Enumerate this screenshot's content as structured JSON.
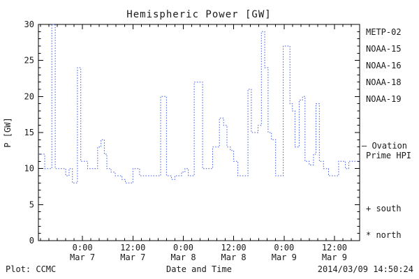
{
  "chart_data": {
    "type": "line",
    "title": "Hemispheric Power [GW]",
    "xlabel": "Date and Time",
    "ylabel": "P [GW]",
    "ylim": [
      0,
      30
    ],
    "y_major_ticks": [
      0,
      5,
      10,
      15,
      20,
      25,
      30
    ],
    "x_range_hours": [
      -10.5,
      66
    ],
    "x_ticks": [
      {
        "hour": 0,
        "time": "0:00",
        "date": "Mar 7"
      },
      {
        "hour": 12,
        "time": "12:00",
        "date": "Mar 7"
      },
      {
        "hour": 24,
        "time": "0:00",
        "date": "Mar 8"
      },
      {
        "hour": 36,
        "time": "12:00",
        "date": "Mar 8"
      },
      {
        "hour": 48,
        "time": "0:00",
        "date": "Mar 9"
      },
      {
        "hour": 60,
        "time": "12:00",
        "date": "Mar 9"
      }
    ],
    "grid": false,
    "legend_position": "right",
    "series": [
      {
        "name": "Ovation Prime HPI",
        "color": "#3b55dd",
        "style": "dotted-step",
        "points": [
          [
            -10.5,
            12
          ],
          [
            -9,
            10
          ],
          [
            -7.3,
            30
          ],
          [
            -6.5,
            10
          ],
          [
            -4,
            9
          ],
          [
            -3.2,
            10
          ],
          [
            -2.4,
            8
          ],
          [
            -1.2,
            24
          ],
          [
            -0.4,
            11
          ],
          [
            1.2,
            10
          ],
          [
            3.6,
            13
          ],
          [
            4.4,
            14
          ],
          [
            5.2,
            12
          ],
          [
            5.8,
            10
          ],
          [
            6.8,
            9.5
          ],
          [
            7.8,
            9
          ],
          [
            9.4,
            8.5
          ],
          [
            10.2,
            8
          ],
          [
            12,
            10
          ],
          [
            13.6,
            9
          ],
          [
            18.6,
            20
          ],
          [
            20,
            9
          ],
          [
            21.2,
            8.5
          ],
          [
            22,
            9
          ],
          [
            23.6,
            9.5
          ],
          [
            24.4,
            10
          ],
          [
            25.2,
            9
          ],
          [
            26.6,
            22
          ],
          [
            28.6,
            10
          ],
          [
            31,
            13
          ],
          [
            32.6,
            17
          ],
          [
            33.6,
            16
          ],
          [
            34.4,
            13
          ],
          [
            35.2,
            12.5
          ],
          [
            36,
            11
          ],
          [
            37,
            9
          ],
          [
            39.4,
            21
          ],
          [
            40.2,
            15
          ],
          [
            41.8,
            16
          ],
          [
            42.6,
            29
          ],
          [
            43.4,
            24
          ],
          [
            44.2,
            15
          ],
          [
            45,
            14
          ],
          [
            46,
            9
          ],
          [
            47.8,
            27
          ],
          [
            49.4,
            19
          ],
          [
            50,
            18
          ],
          [
            50.6,
            13
          ],
          [
            51.6,
            19.5
          ],
          [
            52.4,
            20
          ],
          [
            53,
            11
          ],
          [
            54,
            10.5
          ],
          [
            55,
            12
          ],
          [
            55.6,
            19
          ],
          [
            56.4,
            11
          ],
          [
            57.4,
            10
          ],
          [
            58.6,
            9
          ],
          [
            61,
            11
          ],
          [
            62.6,
            10
          ],
          [
            63.4,
            11
          ],
          [
            66,
            11
          ]
        ]
      }
    ]
  },
  "legend": {
    "satellites": [
      {
        "label": "METP-02",
        "color": "#444444"
      },
      {
        "label": "NOAA-15",
        "color": "#2233cc"
      },
      {
        "label": "NOAA-16",
        "color": "#00bfdf"
      },
      {
        "label": "NOAA-18",
        "color": "#55cc77"
      },
      {
        "label": "NOAA-19",
        "color": "#ee9933"
      }
    ],
    "ovation": {
      "line1": "— Ovation",
      "line2": "Prime HPI",
      "color": "#3b55dd"
    },
    "markers": [
      {
        "text": "+ south"
      },
      {
        "text": "* north"
      }
    ]
  },
  "footer": {
    "source": "Plot: CCMC",
    "timestamp": "2014/03/09 14:50:24"
  }
}
